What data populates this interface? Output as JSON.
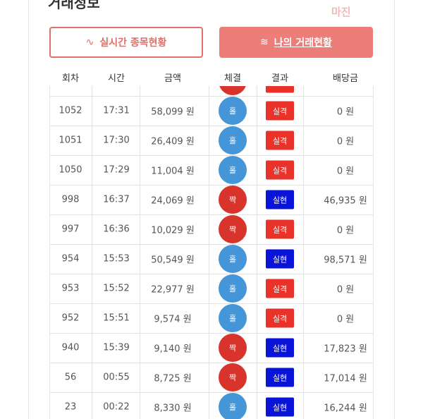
{
  "header": {
    "title": "거래정보",
    "logo": "마진"
  },
  "tabs": [
    "실시간 종목현황",
    "나의 거래현황"
  ],
  "table": {
    "columns": [
      "회차",
      "시간",
      "금액",
      "체결",
      "결과",
      "배당금"
    ],
    "rows": [
      [
        "1052",
        "17:31",
        "58,099 원",
        "홀",
        "실격",
        "0 원"
      ],
      [
        "1051",
        "17:30",
        "26,409 원",
        "홀",
        "실격",
        "0 원"
      ],
      [
        "1050",
        "17:29",
        "11,004 원",
        "홀",
        "실격",
        "0 원"
      ],
      [
        "998",
        "16:37",
        "24,069 원",
        "짝",
        "실현",
        "46,935 원"
      ],
      [
        "997",
        "16:36",
        "10,029 원",
        "짝",
        "실격",
        "0 원"
      ],
      [
        "954",
        "15:53",
        "50,549 원",
        "홀",
        "실현",
        "98,571 원"
      ],
      [
        "953",
        "15:52",
        "22,977 원",
        "홀",
        "실격",
        "0 원"
      ],
      [
        "952",
        "15:51",
        "9,574 원",
        "홀",
        "실격",
        "0 원"
      ],
      [
        "940",
        "15:39",
        "9,140 원",
        "짝",
        "실현",
        "17,823 원"
      ],
      [
        "56",
        "00:55",
        "8,725 원",
        "짝",
        "실현",
        "17,014 원"
      ],
      [
        "23",
        "00:22",
        "8,330 원",
        "홀",
        "실현",
        "16,244 원"
      ]
    ]
  }
}
